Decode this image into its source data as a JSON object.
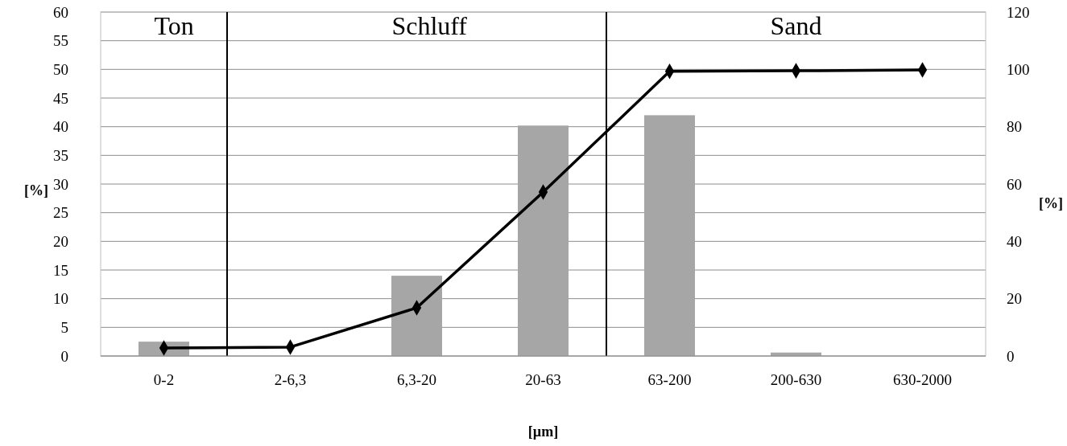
{
  "chart_data": {
    "type": "bar",
    "xlabel": "[µm]",
    "ylabel": "[%]",
    "y2label": "[%]",
    "categories": [
      "0-2",
      "2-6,3",
      "6,3-20",
      "20-63",
      "63-200",
      "200-630",
      "630-2000"
    ],
    "series": [
      {
        "color": "#a6a6a6",
        "values": [
          2.5,
          null,
          14,
          40.2,
          42,
          0.6,
          0
        ]
      },
      {
        "type": "line",
        "axis": "y2",
        "color": "#000000",
        "marker": "diamond",
        "line_style": "solid",
        "values": [
          2.8,
          3.1,
          16.8,
          57.2,
          99.3,
          99.5,
          99.8
        ]
      }
    ],
    "ylim": [
      0,
      60
    ],
    "yticks": [
      0,
      5,
      10,
      15,
      20,
      25,
      30,
      35,
      40,
      45,
      50,
      55,
      60
    ],
    "y2lim": [
      0,
      120
    ],
    "y2ticks": [
      0,
      20,
      40,
      60,
      80,
      100,
      120
    ],
    "grid": "y",
    "annotations": [
      "Ton",
      "Schluff",
      "Sand"
    ]
  }
}
